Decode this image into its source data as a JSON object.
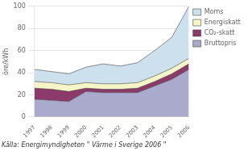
{
  "chart_data": {
    "type": "area",
    "stacked": true,
    "x": [
      1997,
      1998,
      1999,
      2000,
      2001,
      2002,
      2003,
      2004,
      2005,
      2006
    ],
    "series": [
      {
        "name": "Bruttopris",
        "color": "#aaaacc",
        "values": [
          16,
          15,
          14,
          23,
          22,
          22,
          22,
          28,
          34,
          43
        ]
      },
      {
        "name": "CO₂-skatt",
        "color": "#8b3a6a",
        "values": [
          10,
          10,
          9,
          3,
          3,
          3,
          4,
          4,
          5,
          5
        ]
      },
      {
        "name": "Energiskatt",
        "color": "#f5f5c8",
        "values": [
          6,
          6,
          6,
          5,
          5,
          5,
          5,
          5,
          5,
          5
        ]
      },
      {
        "name": "Moms",
        "color": "#cde0ee",
        "values": [
          11,
          10,
          10,
          14,
          18,
          16,
          18,
          23,
          28,
          47
        ]
      }
    ],
    "ylabel": "öre/kWh",
    "xlim": [
      1997,
      2006
    ],
    "xticks": [
      1997,
      1998,
      1999,
      2000,
      2001,
      2002,
      2003,
      2004,
      2005,
      2006
    ],
    "ylim": [
      0,
      100
    ],
    "yticks": [
      0,
      20,
      40,
      60,
      80,
      100
    ],
    "grid": "y",
    "legend": "right",
    "annotations": [
      "Källa: Energimyndigheten \" Värme i Sverige 2006 \""
    ]
  }
}
